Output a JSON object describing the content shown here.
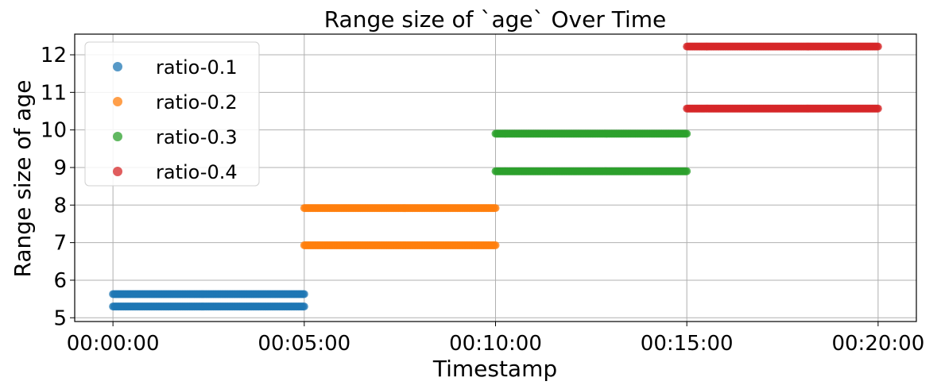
{
  "chart_data": {
    "type": "scatter",
    "title": "Range size of `age` Over Time",
    "xlabel": "Timestamp",
    "ylabel": "Range size of age",
    "x_unit": "minutes",
    "xlim": [
      -1,
      21
    ],
    "ylim": [
      4.9,
      12.55
    ],
    "xticks": [
      {
        "value": 0,
        "label": "00:00:00"
      },
      {
        "value": 5,
        "label": "00:05:00"
      },
      {
        "value": 10,
        "label": "00:10:00"
      },
      {
        "value": 15,
        "label": "00:15:00"
      },
      {
        "value": 20,
        "label": "00:20:00"
      }
    ],
    "yticks": [
      5,
      6,
      7,
      8,
      9,
      10,
      11,
      12
    ],
    "grid": true,
    "legend_position": "top-left",
    "series": [
      {
        "name": "ratio-0.1",
        "color": "#1f77b4",
        "segments": [
          {
            "x": [
              0,
              5
            ],
            "y": 5.3
          },
          {
            "x": [
              0,
              5
            ],
            "y": 5.63
          }
        ]
      },
      {
        "name": "ratio-0.2",
        "color": "#ff7f0e",
        "segments": [
          {
            "x": [
              5,
              10
            ],
            "y": 6.93
          },
          {
            "x": [
              5,
              10
            ],
            "y": 7.92
          }
        ]
      },
      {
        "name": "ratio-0.3",
        "color": "#2ca02c",
        "segments": [
          {
            "x": [
              10,
              15
            ],
            "y": 8.9
          },
          {
            "x": [
              10,
              15
            ],
            "y": 9.9
          }
        ]
      },
      {
        "name": "ratio-0.4",
        "color": "#d62728",
        "segments": [
          {
            "x": [
              15,
              20
            ],
            "y": 10.57
          },
          {
            "x": [
              15,
              20
            ],
            "y": 12.22
          }
        ]
      }
    ]
  }
}
